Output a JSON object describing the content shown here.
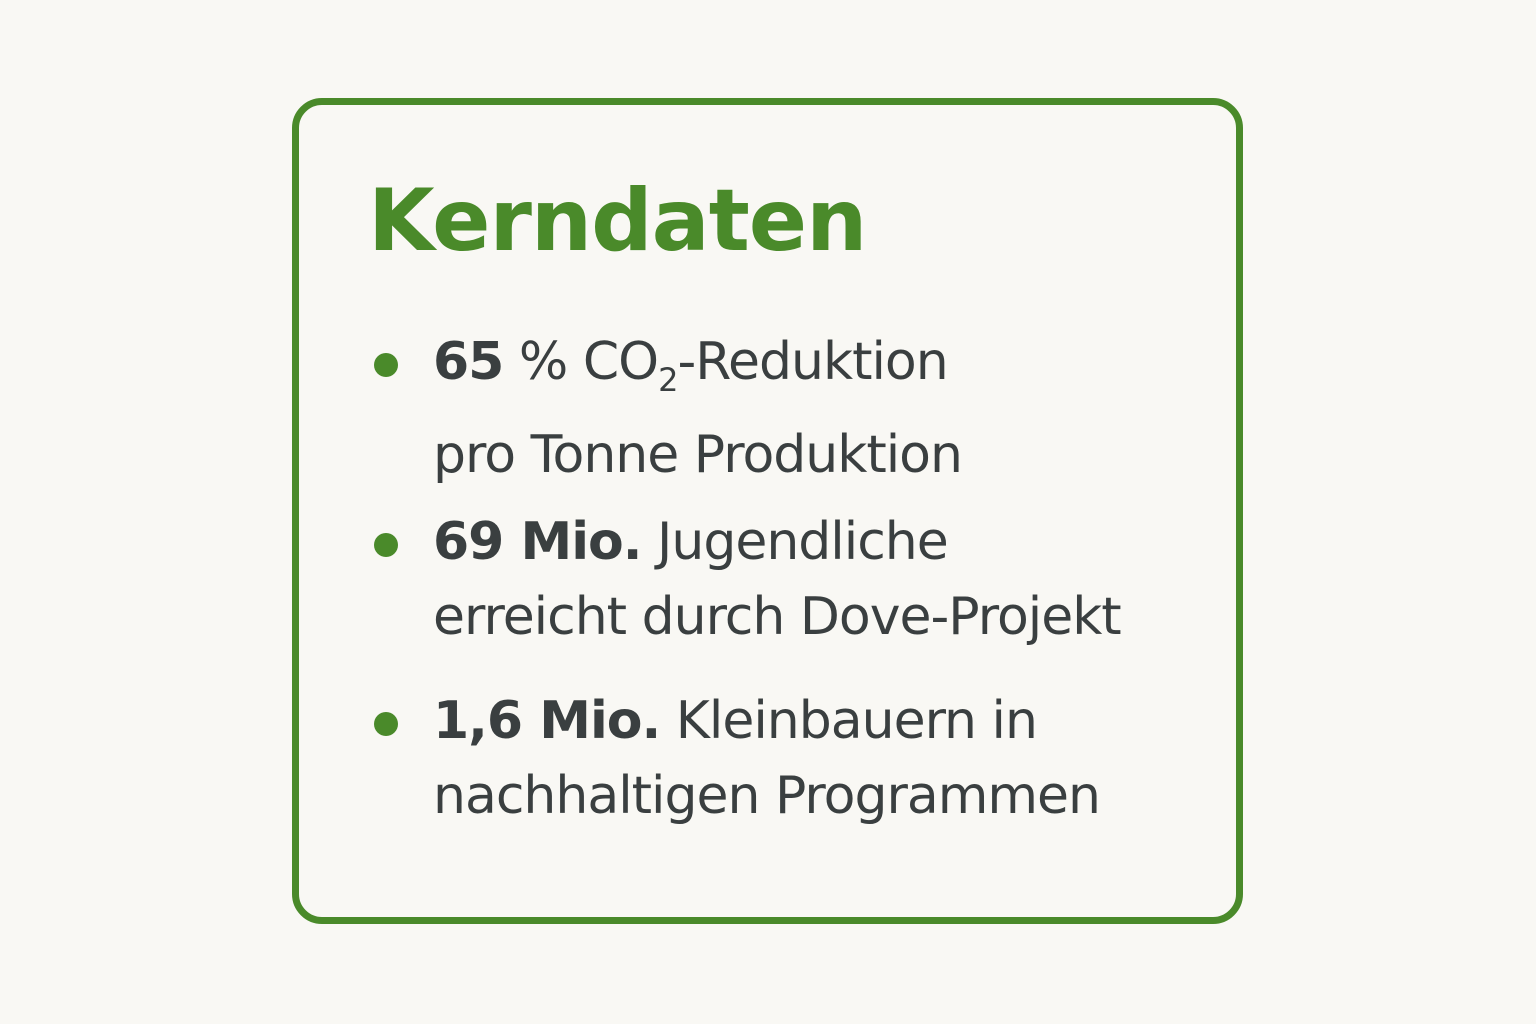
{
  "title": "Kerndaten",
  "colors": {
    "accent": "#4a8a2a",
    "text": "#3a3f40",
    "background": "#f9f8f4"
  },
  "items": [
    {
      "bold": "65",
      "line1": " % CO",
      "sub": "2",
      "line1_rest": "-Reduktion",
      "line2": "pro Tonne Produktion"
    },
    {
      "bold": "69 Mio.",
      "line1": " Jugendliche",
      "line2": "erreicht durch Dove-Projekt"
    },
    {
      "bold": "1,6 Mio.",
      "line1": " Kleinbauern in",
      "line2": "nachhaltigen Programmen"
    }
  ]
}
